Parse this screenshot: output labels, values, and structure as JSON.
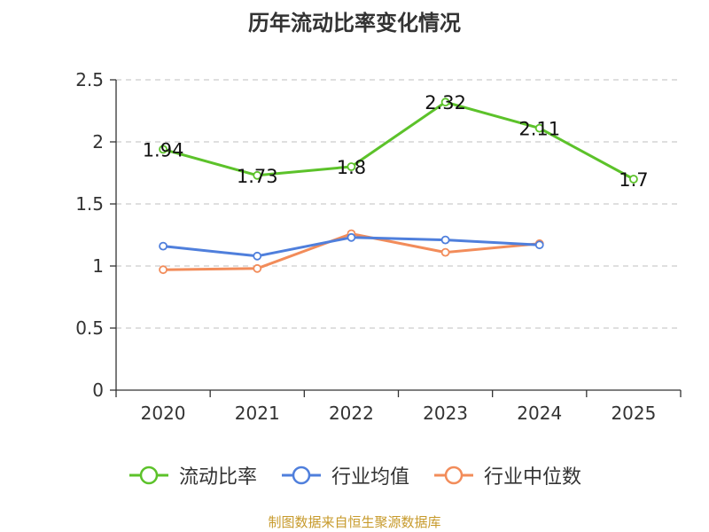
{
  "chart_data": {
    "type": "line",
    "title": "历年流动比率变化情况",
    "categories": [
      "2020",
      "2021",
      "2022",
      "2023",
      "2024",
      "2025"
    ],
    "ylim": [
      0,
      2.5
    ],
    "yticks": [
      "0",
      "0.5",
      "1",
      "1.5",
      "2",
      "2.5"
    ],
    "ytick_values": [
      0,
      0.5,
      1,
      1.5,
      2,
      2.5
    ],
    "grid": true,
    "legend_position": "bottom",
    "series": [
      {
        "name": "流动比率",
        "color": "#5cc22a",
        "labels": true,
        "values": [
          1.94,
          1.73,
          1.8,
          2.32,
          2.11,
          1.7
        ],
        "value_labels": [
          "1.94",
          "1.73",
          "1.8",
          "2.32",
          "2.11",
          "1.7"
        ]
      },
      {
        "name": "行业均值",
        "color": "#4f7fdc",
        "labels": false,
        "values": [
          1.16,
          1.08,
          1.23,
          1.21,
          1.17,
          null
        ]
      },
      {
        "name": "行业中位数",
        "color": "#f28c5a",
        "labels": false,
        "values": [
          0.97,
          0.98,
          1.26,
          1.11,
          1.18,
          null
        ]
      }
    ]
  },
  "source": "制图数据来自恒生聚源数据库"
}
